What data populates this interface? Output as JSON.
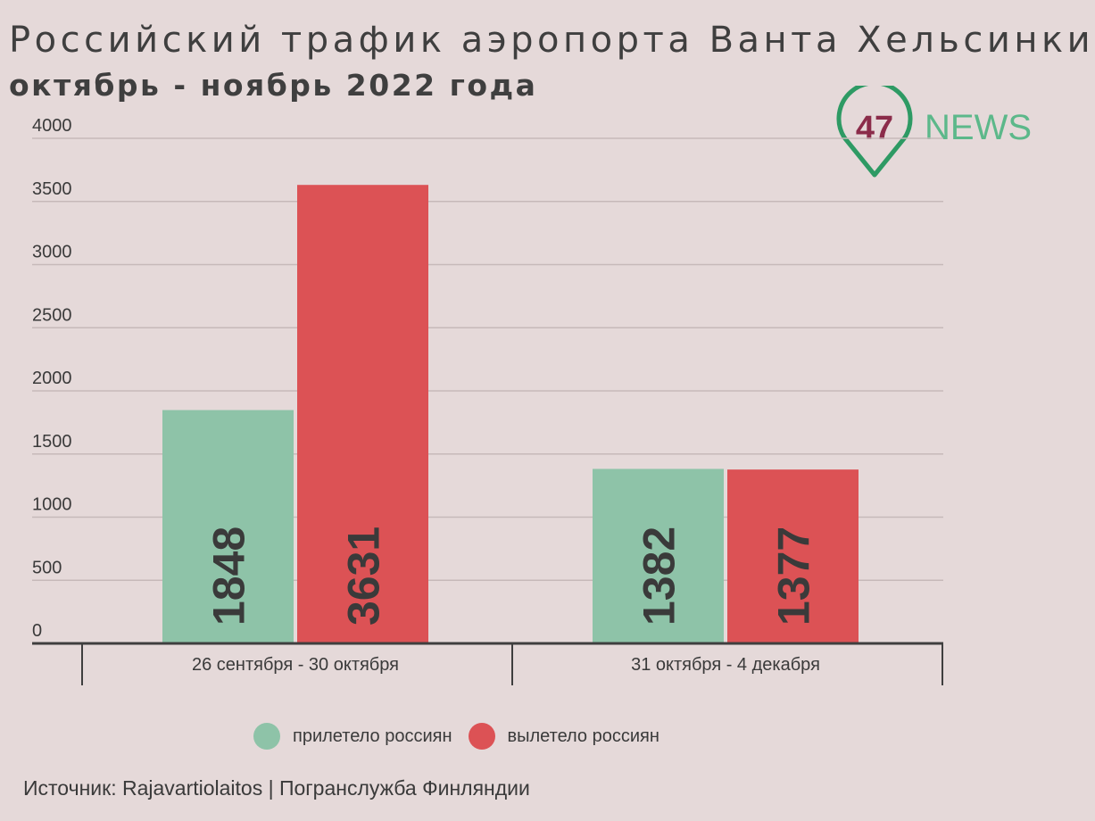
{
  "title": "Российский трафик аэропорта Ванта Хельсинки",
  "subtitle": "октябрь - ноябрь 2022 года",
  "logo": {
    "number": "47",
    "text": "NEWS",
    "number_color": "#8b2c4a",
    "accent_color": "#5cb88a"
  },
  "source": "Источник: Rajavartiolaitos | Погранслужба Финляндии",
  "chart_data": {
    "type": "bar",
    "categories": [
      "26 сентября - 30 октября",
      "31 октября - 4 декабря"
    ],
    "series": [
      {
        "name": "прилетело россиян",
        "values": [
          1848,
          1382
        ],
        "color": "#8ec3a8"
      },
      {
        "name": "вылетело россиян",
        "values": [
          3631,
          1377
        ],
        "color": "#dc5255"
      }
    ],
    "ylim": [
      0,
      4000
    ],
    "yticks": [
      0,
      500,
      1000,
      1500,
      2000,
      2500,
      3000,
      3500,
      4000
    ],
    "xlabel": "",
    "ylabel": "",
    "grid": true,
    "legend": "bottom",
    "data_labels": "vertical"
  }
}
